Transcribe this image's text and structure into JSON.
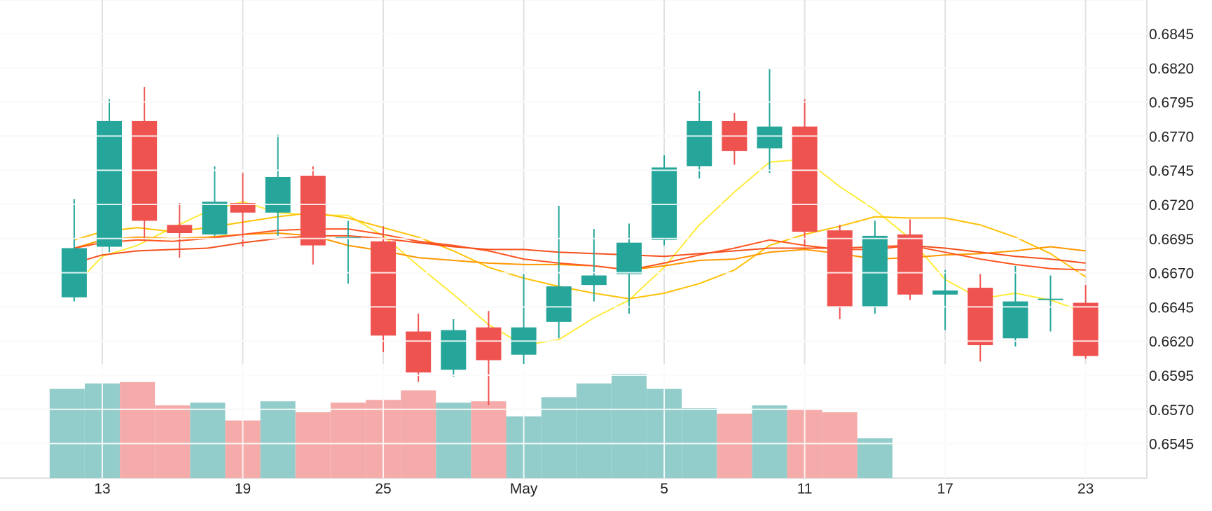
{
  "chart_data": {
    "type": "candlestick",
    "title": "",
    "xlabel": "",
    "ylabel": "",
    "ylim": [
      0.652,
      0.6855
    ],
    "y_ticks": [
      "0.6845",
      "0.6820",
      "0.6795",
      "0.6770",
      "0.6745",
      "0.6720",
      "0.6695",
      "0.6670",
      "0.6645",
      "0.6620",
      "0.6595",
      "0.6570",
      "0.6545"
    ],
    "x_ticks": [
      {
        "label": "13",
        "day": 13
      },
      {
        "label": "19",
        "day": 19
      },
      {
        "label": "25",
        "day": 25
      },
      {
        "label": "May",
        "day": 31
      },
      {
        "label": "5",
        "day": 37
      },
      {
        "label": "11",
        "day": 43
      },
      {
        "label": "17",
        "day": 49
      },
      {
        "label": "23",
        "day": 55
      }
    ],
    "colors": {
      "up": "#26a69a",
      "down": "#ef5350",
      "volume_up": "#92cdcb",
      "volume_down": "#f5aba9",
      "grid": "#e1e1e1"
    },
    "candles": [
      {
        "day": 11.8,
        "open": 0.6652,
        "high": 0.6724,
        "low": 0.6649,
        "close": 0.6688
      },
      {
        "day": 13.3,
        "open": 0.6689,
        "high": 0.6797,
        "low": 0.6685,
        "close": 0.6781
      },
      {
        "day": 14.8,
        "open": 0.6781,
        "high": 0.6806,
        "low": 0.6693,
        "close": 0.6708
      },
      {
        "day": 16.3,
        "open": 0.6705,
        "high": 0.6721,
        "low": 0.6681,
        "close": 0.6699
      },
      {
        "day": 17.8,
        "open": 0.6698,
        "high": 0.6748,
        "low": 0.6697,
        "close": 0.6722
      },
      {
        "day": 19.0,
        "open": 0.6721,
        "high": 0.6743,
        "low": 0.6689,
        "close": 0.6714
      },
      {
        "day": 20.5,
        "open": 0.6714,
        "high": 0.6771,
        "low": 0.6697,
        "close": 0.674
      },
      {
        "day": 22.0,
        "open": 0.6741,
        "high": 0.6748,
        "low": 0.6676,
        "close": 0.669
      },
      {
        "day": 23.5,
        "open": 0.6696,
        "high": 0.6708,
        "low": 0.6662,
        "close": 0.6696
      },
      {
        "day": 25.0,
        "open": 0.6693,
        "high": 0.6704,
        "low": 0.6612,
        "close": 0.6624
      },
      {
        "day": 26.5,
        "open": 0.6627,
        "high": 0.664,
        "low": 0.659,
        "close": 0.6597
      },
      {
        "day": 28.0,
        "open": 0.6599,
        "high": 0.6636,
        "low": 0.6594,
        "close": 0.6628
      },
      {
        "day": 29.5,
        "open": 0.663,
        "high": 0.6642,
        "low": 0.6573,
        "close": 0.6606
      },
      {
        "day": 31.0,
        "open": 0.661,
        "high": 0.6669,
        "low": 0.6603,
        "close": 0.663
      },
      {
        "day": 32.5,
        "open": 0.6634,
        "high": 0.6719,
        "low": 0.6622,
        "close": 0.666
      },
      {
        "day": 34.0,
        "open": 0.6661,
        "high": 0.6702,
        "low": 0.6649,
        "close": 0.6668
      },
      {
        "day": 35.5,
        "open": 0.6669,
        "high": 0.6706,
        "low": 0.664,
        "close": 0.6692
      },
      {
        "day": 37.0,
        "open": 0.6694,
        "high": 0.6756,
        "low": 0.669,
        "close": 0.6747
      },
      {
        "day": 38.5,
        "open": 0.6748,
        "high": 0.6803,
        "low": 0.6739,
        "close": 0.6781
      },
      {
        "day": 40.0,
        "open": 0.6781,
        "high": 0.6787,
        "low": 0.6749,
        "close": 0.6759
      },
      {
        "day": 41.5,
        "open": 0.6761,
        "high": 0.6819,
        "low": 0.6743,
        "close": 0.6777
      },
      {
        "day": 43.0,
        "open": 0.6777,
        "high": 0.6797,
        "low": 0.6689,
        "close": 0.67
      },
      {
        "day": 44.5,
        "open": 0.6701,
        "high": 0.6705,
        "low": 0.6636,
        "close": 0.6645
      },
      {
        "day": 46.0,
        "open": 0.6645,
        "high": 0.6708,
        "low": 0.664,
        "close": 0.6697
      },
      {
        "day": 47.5,
        "open": 0.6698,
        "high": 0.6709,
        "low": 0.665,
        "close": 0.6654
      },
      {
        "day": 49.0,
        "open": 0.6654,
        "high": 0.6672,
        "low": 0.6628,
        "close": 0.6657
      },
      {
        "day": 50.5,
        "open": 0.6659,
        "high": 0.6669,
        "low": 0.6605,
        "close": 0.6617
      },
      {
        "day": 52.0,
        "open": 0.6622,
        "high": 0.6675,
        "low": 0.6616,
        "close": 0.6649
      },
      {
        "day": 53.5,
        "open": 0.6651,
        "high": 0.6668,
        "low": 0.6627,
        "close": 0.6651
      },
      {
        "day": 55.0,
        "open": 0.6648,
        "high": 0.6661,
        "low": 0.6607,
        "close": 0.6609
      }
    ],
    "volume": [
      {
        "day": 11.5,
        "value": 0.65,
        "dir": "up"
      },
      {
        "day": 13.0,
        "value": 0.69,
        "dir": "up"
      },
      {
        "day": 14.5,
        "value": 0.7,
        "dir": "down"
      },
      {
        "day": 16.0,
        "value": 0.53,
        "dir": "down"
      },
      {
        "day": 17.5,
        "value": 0.55,
        "dir": "up"
      },
      {
        "day": 19.0,
        "value": 0.42,
        "dir": "down"
      },
      {
        "day": 20.5,
        "value": 0.56,
        "dir": "up"
      },
      {
        "day": 22.0,
        "value": 0.48,
        "dir": "down"
      },
      {
        "day": 23.5,
        "value": 0.55,
        "dir": "down"
      },
      {
        "day": 25.0,
        "value": 0.57,
        "dir": "down"
      },
      {
        "day": 26.5,
        "value": 0.64,
        "dir": "down"
      },
      {
        "day": 28.0,
        "value": 0.55,
        "dir": "up"
      },
      {
        "day": 29.5,
        "value": 0.56,
        "dir": "down"
      },
      {
        "day": 31.0,
        "value": 0.45,
        "dir": "up"
      },
      {
        "day": 32.5,
        "value": 0.59,
        "dir": "up"
      },
      {
        "day": 34.0,
        "value": 0.69,
        "dir": "up"
      },
      {
        "day": 35.5,
        "value": 0.76,
        "dir": "up"
      },
      {
        "day": 37.0,
        "value": 0.65,
        "dir": "up"
      },
      {
        "day": 38.5,
        "value": 0.51,
        "dir": "up"
      },
      {
        "day": 40.0,
        "value": 0.47,
        "dir": "down"
      },
      {
        "day": 41.5,
        "value": 0.53,
        "dir": "up"
      },
      {
        "day": 43.0,
        "value": 0.5,
        "dir": "down"
      },
      {
        "day": 44.5,
        "value": 0.48,
        "dir": "down"
      },
      {
        "day": 46.0,
        "value": 0.29,
        "dir": "up"
      }
    ],
    "ma_lines": [
      {
        "color": "#ffeb3b",
        "points": [
          [
            11.8,
            0.666
          ],
          [
            13,
            0.6682
          ],
          [
            14.5,
            0.669
          ],
          [
            16,
            0.6703
          ],
          [
            17.5,
            0.6715
          ],
          [
            19,
            0.6722
          ],
          [
            20.5,
            0.6714
          ],
          [
            22,
            0.6712
          ],
          [
            23.5,
            0.6712
          ],
          [
            25,
            0.6697
          ],
          [
            26.5,
            0.6675
          ],
          [
            28,
            0.6654
          ],
          [
            29.5,
            0.6632
          ],
          [
            31,
            0.6617
          ],
          [
            32.5,
            0.6621
          ],
          [
            34,
            0.6637
          ],
          [
            35.5,
            0.665
          ],
          [
            37,
            0.6674
          ],
          [
            38.5,
            0.6705
          ],
          [
            40,
            0.6729
          ],
          [
            41.5,
            0.6751
          ],
          [
            43,
            0.6753
          ],
          [
            44.5,
            0.6733
          ],
          [
            46,
            0.6716
          ],
          [
            47.5,
            0.6695
          ],
          [
            49,
            0.6665
          ],
          [
            50.5,
            0.6651
          ],
          [
            52,
            0.6655
          ],
          [
            53.5,
            0.665
          ],
          [
            55,
            0.6641
          ]
        ]
      },
      {
        "color": "#ffc107",
        "points": [
          [
            11.8,
            0.6694
          ],
          [
            13,
            0.67
          ],
          [
            14.5,
            0.6703
          ],
          [
            16,
            0.67
          ],
          [
            17.5,
            0.6703
          ],
          [
            19,
            0.6707
          ],
          [
            20.5,
            0.6711
          ],
          [
            22,
            0.6714
          ],
          [
            23.5,
            0.671
          ],
          [
            25,
            0.6703
          ],
          [
            26.5,
            0.6696
          ],
          [
            28,
            0.6686
          ],
          [
            29.5,
            0.6674
          ],
          [
            31,
            0.6666
          ],
          [
            32.5,
            0.666
          ],
          [
            34,
            0.6655
          ],
          [
            35.5,
            0.6651
          ],
          [
            37,
            0.6655
          ],
          [
            38.5,
            0.6662
          ],
          [
            40,
            0.6672
          ],
          [
            41.5,
            0.669
          ],
          [
            43,
            0.6698
          ],
          [
            44.5,
            0.6704
          ],
          [
            46,
            0.6711
          ],
          [
            47.5,
            0.671
          ],
          [
            49,
            0.671
          ],
          [
            50.5,
            0.6705
          ],
          [
            52,
            0.6696
          ],
          [
            53.5,
            0.6684
          ],
          [
            55,
            0.6667
          ]
        ]
      },
      {
        "color": "#ff9800",
        "points": [
          [
            11.8,
            0.6688
          ],
          [
            13,
            0.6694
          ],
          [
            14.5,
            0.6696
          ],
          [
            16,
            0.6695
          ],
          [
            17.5,
            0.6696
          ],
          [
            19,
            0.6698
          ],
          [
            20.5,
            0.6699
          ],
          [
            22,
            0.6697
          ],
          [
            23.5,
            0.669
          ],
          [
            25,
            0.6686
          ],
          [
            26.5,
            0.6681
          ],
          [
            28,
            0.6679
          ],
          [
            29.5,
            0.6677
          ],
          [
            31,
            0.6676
          ],
          [
            32.5,
            0.6676
          ],
          [
            34,
            0.6675
          ],
          [
            35.5,
            0.6672
          ],
          [
            37,
            0.6675
          ],
          [
            38.5,
            0.6679
          ],
          [
            40,
            0.668
          ],
          [
            41.5,
            0.6685
          ],
          [
            43,
            0.6687
          ],
          [
            44.5,
            0.6684
          ],
          [
            46,
            0.668
          ],
          [
            47.5,
            0.6681
          ],
          [
            49,
            0.6683
          ],
          [
            50.5,
            0.6684
          ],
          [
            52,
            0.6686
          ],
          [
            53.5,
            0.6689
          ],
          [
            55,
            0.6686
          ]
        ]
      },
      {
        "color": "#ff5722",
        "points": [
          [
            11.8,
            0.6688
          ],
          [
            13,
            0.6692
          ],
          [
            14.5,
            0.6694
          ],
          [
            16,
            0.6693
          ],
          [
            17.5,
            0.6695
          ],
          [
            19,
            0.6698
          ],
          [
            20.5,
            0.6701
          ],
          [
            22,
            0.6702
          ],
          [
            23.5,
            0.6702
          ],
          [
            25,
            0.6698
          ],
          [
            26.5,
            0.6693
          ],
          [
            28,
            0.669
          ],
          [
            29.5,
            0.6686
          ],
          [
            31,
            0.668
          ],
          [
            32.5,
            0.6677
          ],
          [
            34,
            0.6675
          ],
          [
            35.5,
            0.6672
          ],
          [
            37,
            0.6677
          ],
          [
            38.5,
            0.6683
          ],
          [
            40,
            0.6688
          ],
          [
            41.5,
            0.6694
          ],
          [
            43,
            0.669
          ],
          [
            44.5,
            0.6687
          ],
          [
            46,
            0.6687
          ],
          [
            47.5,
            0.669
          ],
          [
            49,
            0.6685
          ],
          [
            50.5,
            0.668
          ],
          [
            52,
            0.6676
          ],
          [
            53.5,
            0.6673
          ],
          [
            55,
            0.6672
          ]
        ]
      },
      {
        "color": "#f4511e",
        "points": [
          [
            11.8,
            0.6677
          ],
          [
            13,
            0.6683
          ],
          [
            14.5,
            0.6686
          ],
          [
            16,
            0.6687
          ],
          [
            17.5,
            0.6688
          ],
          [
            19,
            0.6692
          ],
          [
            20.5,
            0.6695
          ],
          [
            22,
            0.6697
          ],
          [
            23.5,
            0.6697
          ],
          [
            25,
            0.6695
          ],
          [
            26.5,
            0.6692
          ],
          [
            28,
            0.6689
          ],
          [
            29.5,
            0.6687
          ],
          [
            31,
            0.6687
          ],
          [
            32.5,
            0.6685
          ],
          [
            34,
            0.6684
          ],
          [
            35.5,
            0.6683
          ],
          [
            37,
            0.6682
          ],
          [
            38.5,
            0.6684
          ],
          [
            40,
            0.6686
          ],
          [
            41.5,
            0.6688
          ],
          [
            43,
            0.6688
          ],
          [
            44.5,
            0.6688
          ],
          [
            46,
            0.6689
          ],
          [
            47.5,
            0.669
          ],
          [
            49,
            0.6688
          ],
          [
            50.5,
            0.6685
          ],
          [
            52,
            0.6682
          ],
          [
            53.5,
            0.668
          ],
          [
            55,
            0.6677
          ]
        ]
      }
    ]
  }
}
